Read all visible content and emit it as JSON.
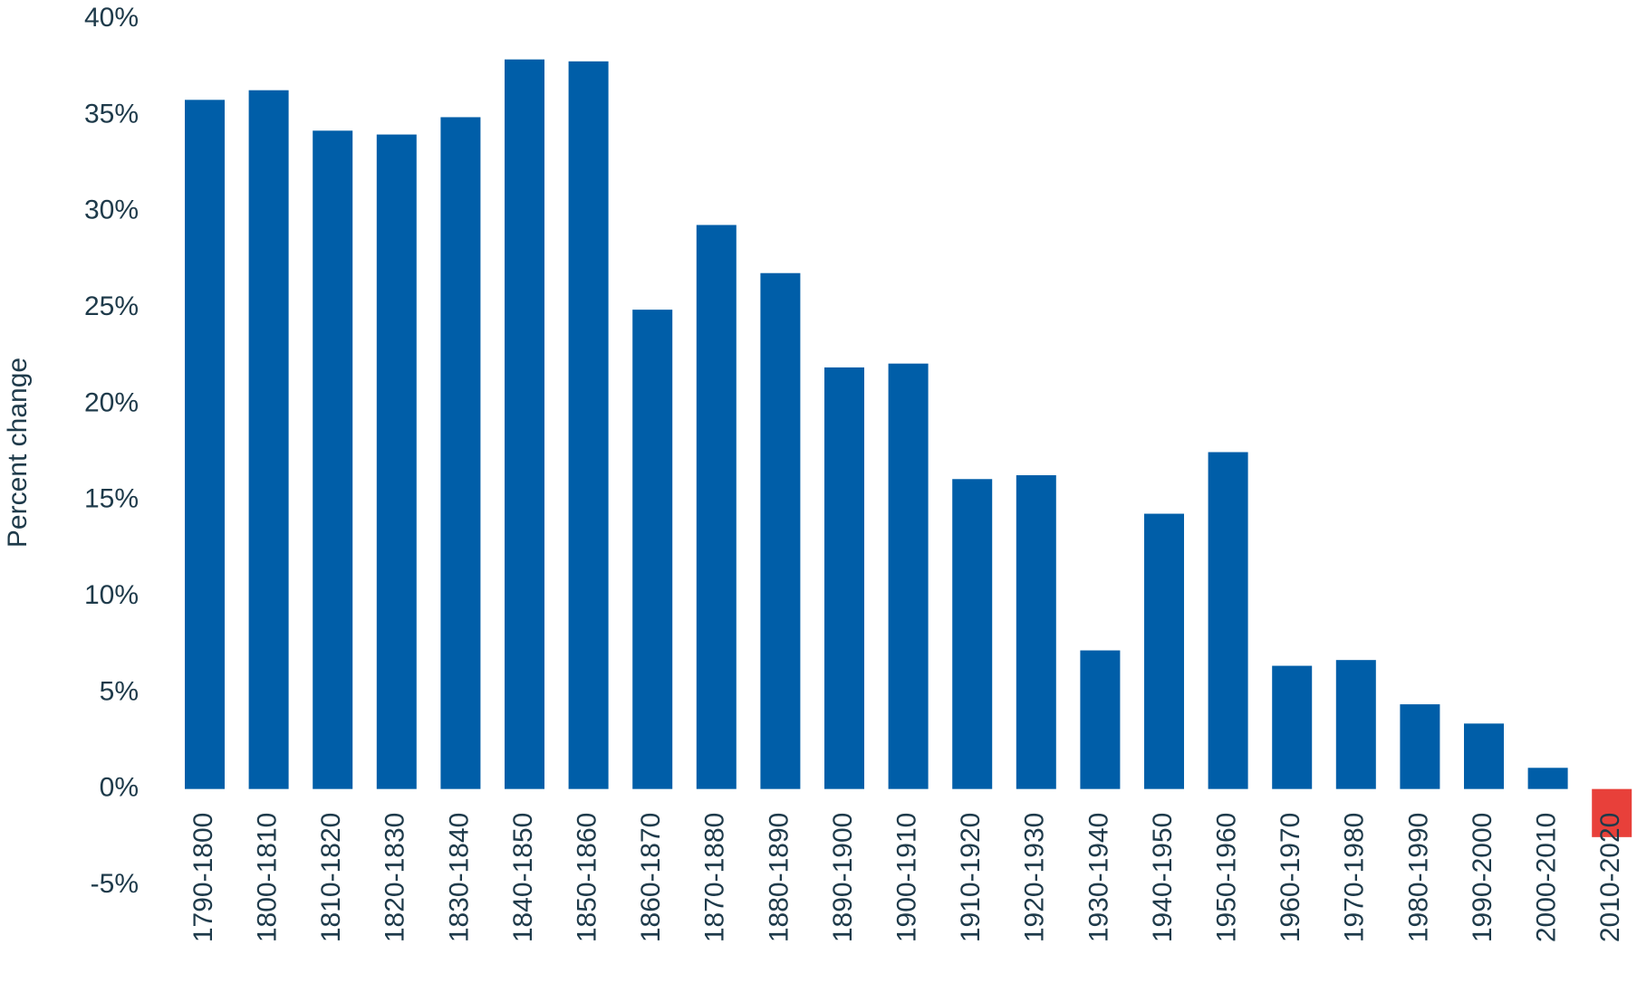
{
  "chart_data": {
    "type": "bar",
    "y_label": "Percent change",
    "categories": [
      "1790-1800",
      "1800-1810",
      "1810-1820",
      "1820-1830",
      "1830-1840",
      "1840-1850",
      "1850-1860",
      "1860-1870",
      "1870-1880",
      "1880-1890",
      "1890-1900",
      "1900-1910",
      "1910-1920",
      "1920-1930",
      "1930-1940",
      "1940-1950",
      "1950-1960",
      "1960-1970",
      "1970-1980",
      "1980-1990",
      "1990-2000",
      "2000-2010",
      "2010-2020"
    ],
    "values": [
      35.8,
      36.3,
      34.2,
      34.0,
      34.9,
      37.9,
      37.8,
      24.9,
      29.3,
      26.8,
      21.9,
      22.1,
      16.1,
      16.3,
      7.2,
      14.3,
      17.5,
      6.4,
      6.7,
      4.4,
      3.4,
      1.1,
      -2.5
    ],
    "color": "#005ea8",
    "negative_color": "#e8403a",
    "ylim": [
      -5,
      40
    ],
    "yticks": [
      {
        "value": -5,
        "label": "-5%"
      },
      {
        "value": 0,
        "label": "0%"
      },
      {
        "value": 5,
        "label": "5%"
      },
      {
        "value": 10,
        "label": "10%"
      },
      {
        "value": 15,
        "label": "15%"
      },
      {
        "value": 20,
        "label": "20%"
      },
      {
        "value": 25,
        "label": "25%"
      },
      {
        "value": 30,
        "label": "30%"
      },
      {
        "value": 35,
        "label": "35%"
      },
      {
        "value": 40,
        "label": "40%"
      }
    ],
    "grid": false
  }
}
